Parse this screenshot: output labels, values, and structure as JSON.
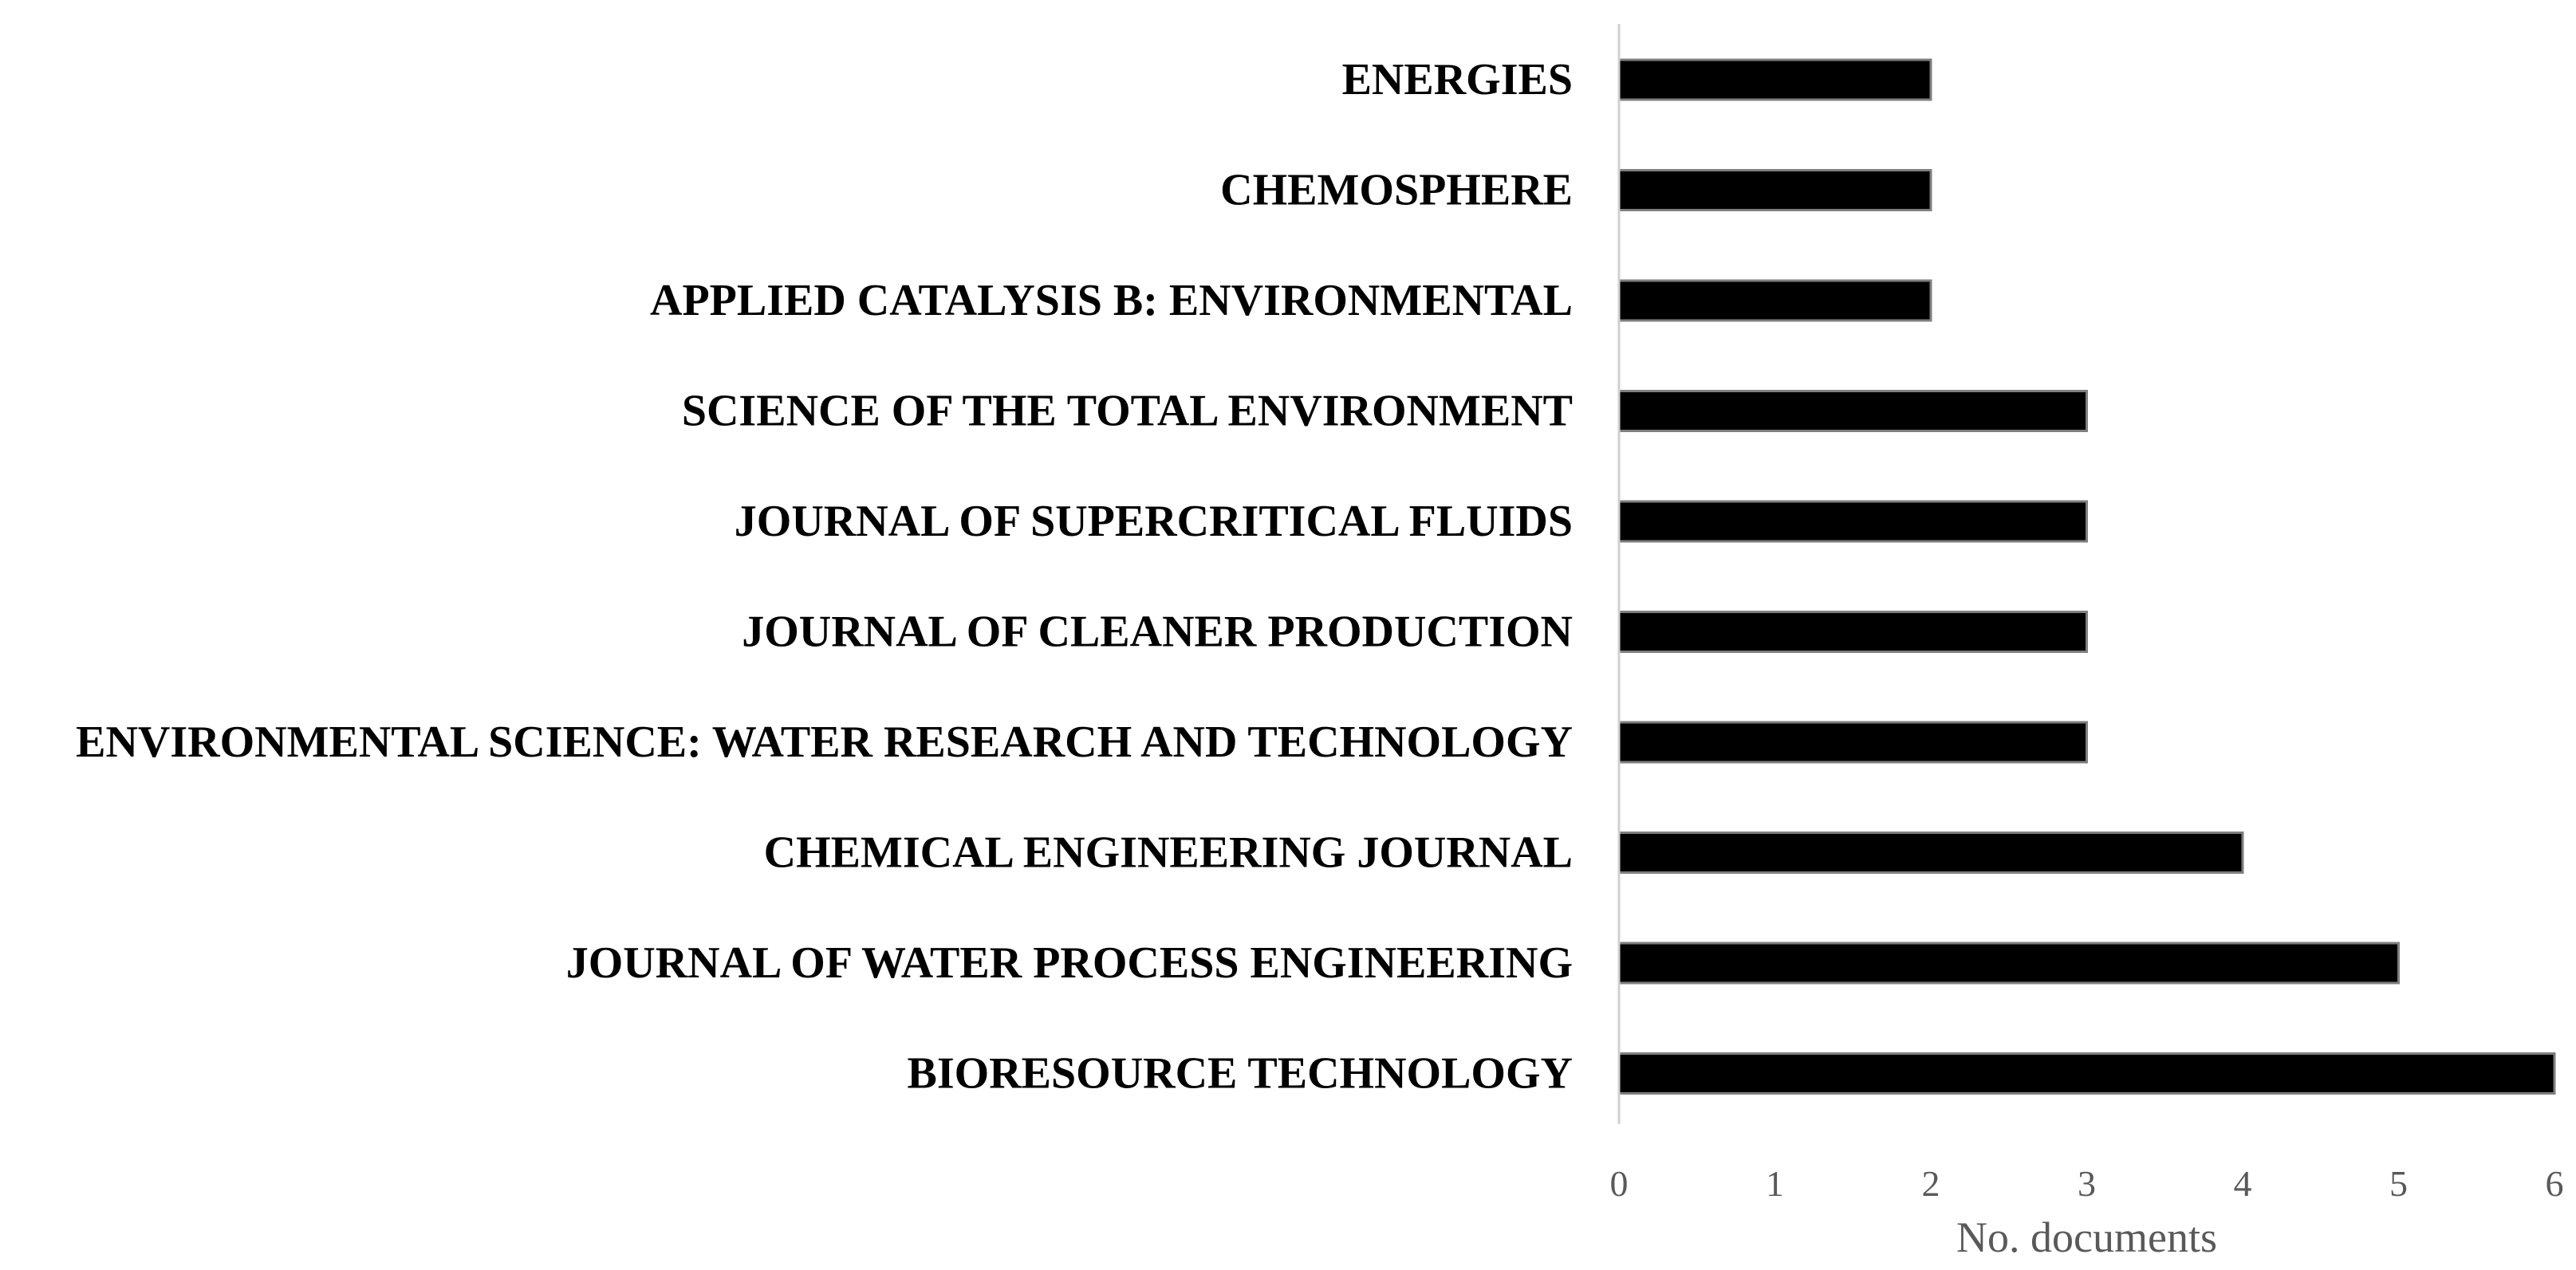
{
  "chart_data": {
    "type": "bar",
    "orientation": "horizontal",
    "categories": [
      "ENERGIES",
      "CHEMOSPHERE",
      "APPLIED CATALYSIS B: ENVIRONMENTAL",
      "SCIENCE OF THE TOTAL ENVIRONMENT",
      "JOURNAL OF SUPERCRITICAL FLUIDS",
      "JOURNAL OF CLEANER PRODUCTION",
      "ENVIRONMENTAL SCIENCE: WATER RESEARCH AND TECHNOLOGY",
      "CHEMICAL ENGINEERING JOURNAL",
      "JOURNAL OF WATER PROCESS ENGINEERING",
      "BIORESOURCE TECHNOLOGY"
    ],
    "values": [
      2,
      2,
      2,
      3,
      3,
      3,
      3,
      4,
      5,
      6
    ],
    "xlabel": "No. documents",
    "ylabel": "",
    "xlim": [
      0,
      6
    ],
    "x_ticks": [
      "0",
      "1",
      "2",
      "3",
      "4",
      "5",
      "6"
    ],
    "grid": false,
    "legend": "none",
    "colors": {
      "bar_fill": "#000000",
      "bar_stroke": "#7f7f7f",
      "axis_line": "#d0d0d0",
      "tick_text": "#595959",
      "category_text": "#000000"
    }
  }
}
